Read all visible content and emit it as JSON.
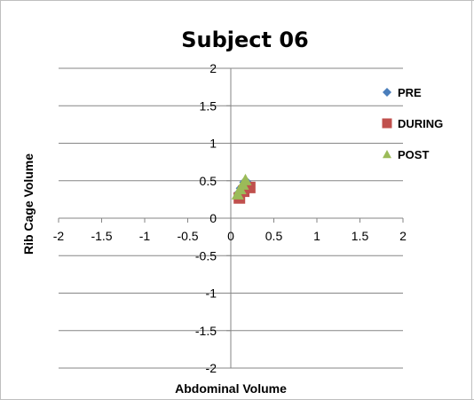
{
  "chart_data": {
    "type": "scatter",
    "title": "Subject 06",
    "xlabel": "Abdominal Volume",
    "ylabel": "Rib Cage Volume",
    "xlim": [
      -2,
      2
    ],
    "ylim": [
      -2,
      2
    ],
    "x_ticks": [
      "-2",
      "-1.5",
      "-1",
      "-0.5",
      "0",
      "0.5",
      "1",
      "1.5",
      "2"
    ],
    "y_ticks": [
      "-2",
      "-1.5",
      "-1",
      "-0.5",
      "0",
      "0.5",
      "1",
      "1.5",
      "2"
    ],
    "grid": "horizontal",
    "legend_position": "right",
    "series": [
      {
        "name": "PRE",
        "marker": "diamond",
        "color": "#4A7EBB",
        "points": [
          {
            "x": 0.1,
            "y": 0.33
          },
          {
            "x": 0.13,
            "y": 0.4
          },
          {
            "x": 0.17,
            "y": 0.48
          },
          {
            "x": 0.2,
            "y": 0.45
          }
        ]
      },
      {
        "name": "DURING",
        "marker": "square",
        "color": "#C0504D",
        "points": [
          {
            "x": 0.1,
            "y": 0.27
          },
          {
            "x": 0.15,
            "y": 0.36
          },
          {
            "x": 0.22,
            "y": 0.41
          }
        ]
      },
      {
        "name": "POST",
        "marker": "triangle",
        "color": "#9BBB59",
        "points": [
          {
            "x": 0.08,
            "y": 0.32
          },
          {
            "x": 0.11,
            "y": 0.39
          },
          {
            "x": 0.14,
            "y": 0.45
          },
          {
            "x": 0.17,
            "y": 0.51
          }
        ]
      }
    ]
  }
}
